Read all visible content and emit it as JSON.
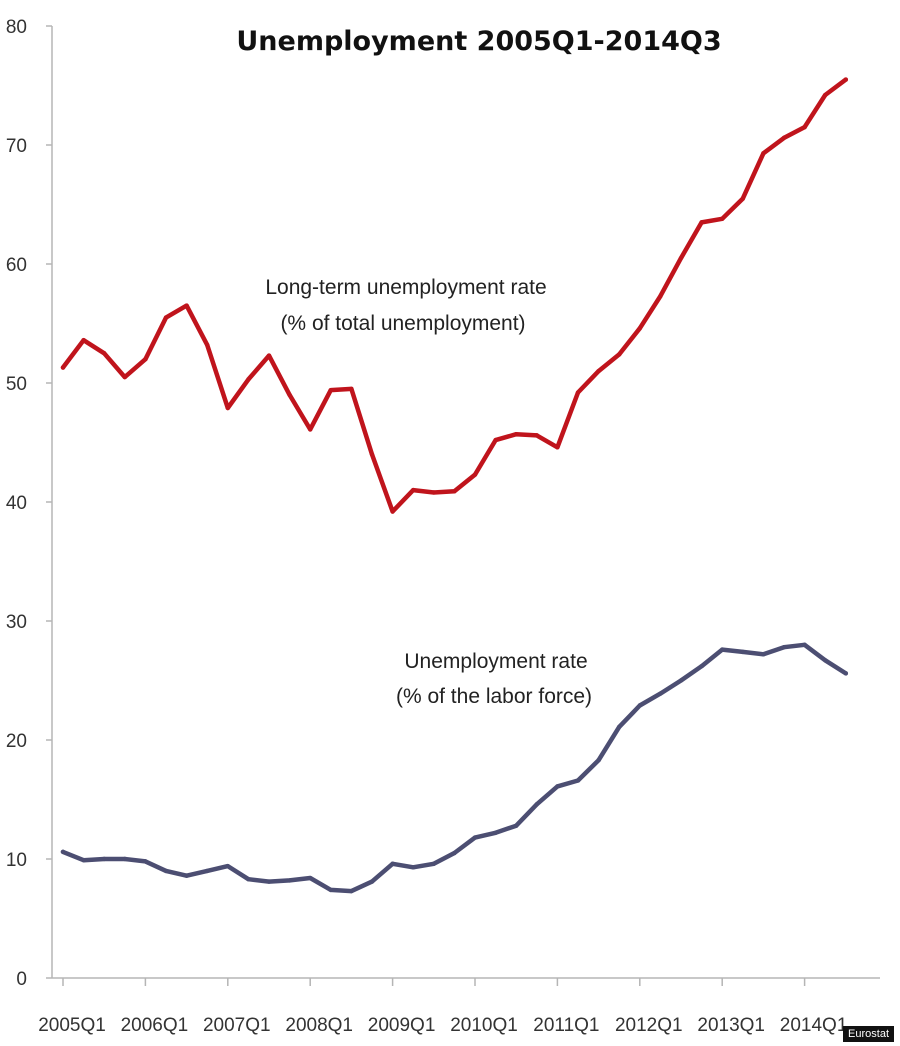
{
  "chart_data": {
    "type": "line",
    "title": "Unemployment 2005Q1-2014Q3",
    "xlabel": "",
    "ylabel": "",
    "ylim": [
      0,
      80
    ],
    "yticks": [
      0,
      10,
      20,
      30,
      40,
      50,
      60,
      70,
      80
    ],
    "grid": false,
    "x_tick_labels": [
      "2005Q1",
      "2006Q1",
      "2007Q1",
      "2008Q1",
      "2009Q1",
      "2010Q1",
      "2011Q1",
      "2012Q1",
      "2013Q1",
      "2014Q1"
    ],
    "x": [
      "2005Q1",
      "2005Q2",
      "2005Q3",
      "2005Q4",
      "2006Q1",
      "2006Q2",
      "2006Q3",
      "2006Q4",
      "2007Q1",
      "2007Q2",
      "2007Q3",
      "2007Q4",
      "2008Q1",
      "2008Q2",
      "2008Q3",
      "2008Q4",
      "2009Q1",
      "2009Q2",
      "2009Q3",
      "2009Q4",
      "2010Q1",
      "2010Q2",
      "2010Q3",
      "2010Q4",
      "2011Q1",
      "2011Q2",
      "2011Q3",
      "2011Q4",
      "2012Q1",
      "2012Q2",
      "2012Q3",
      "2012Q4",
      "2013Q1",
      "2013Q2",
      "2013Q3",
      "2013Q4",
      "2014Q1",
      "2014Q2",
      "2014Q3"
    ],
    "series": [
      {
        "color": "#c0141c",
        "values": [
          51.3,
          53.6,
          52.5,
          50.5,
          52.0,
          55.5,
          56.5,
          53.2,
          47.9,
          50.3,
          52.3,
          49.0,
          46.1,
          49.4,
          49.5,
          44.0,
          39.2,
          41.0,
          40.8,
          40.9,
          42.3,
          45.2,
          45.7,
          45.6,
          44.6,
          49.2,
          51.0,
          52.4,
          54.6,
          57.3,
          60.5,
          63.5,
          63.8,
          65.5,
          69.3,
          70.6,
          71.5,
          74.2,
          75.5
        ]
      },
      {
        "color": "#4c4e72",
        "values": [
          10.6,
          9.9,
          10.0,
          10.0,
          9.8,
          9.0,
          8.6,
          9.0,
          9.4,
          8.3,
          8.1,
          8.2,
          8.4,
          7.4,
          7.3,
          8.1,
          9.6,
          9.3,
          9.6,
          10.5,
          11.8,
          12.2,
          12.8,
          14.6,
          16.1,
          16.6,
          18.3,
          21.1,
          22.9,
          23.9,
          25.0,
          26.2,
          27.6,
          27.4,
          27.2,
          27.8,
          28.0,
          26.7,
          25.6
        ]
      }
    ],
    "annotations": [
      {
        "series_index": 0,
        "lines": [
          "Long-term unemployment rate",
          "(% of total unemployment)"
        ]
      },
      {
        "series_index": 1,
        "lines": [
          "Unemployment rate",
          "(% of the labor force)"
        ]
      }
    ]
  },
  "source_badge": "Eurostat"
}
